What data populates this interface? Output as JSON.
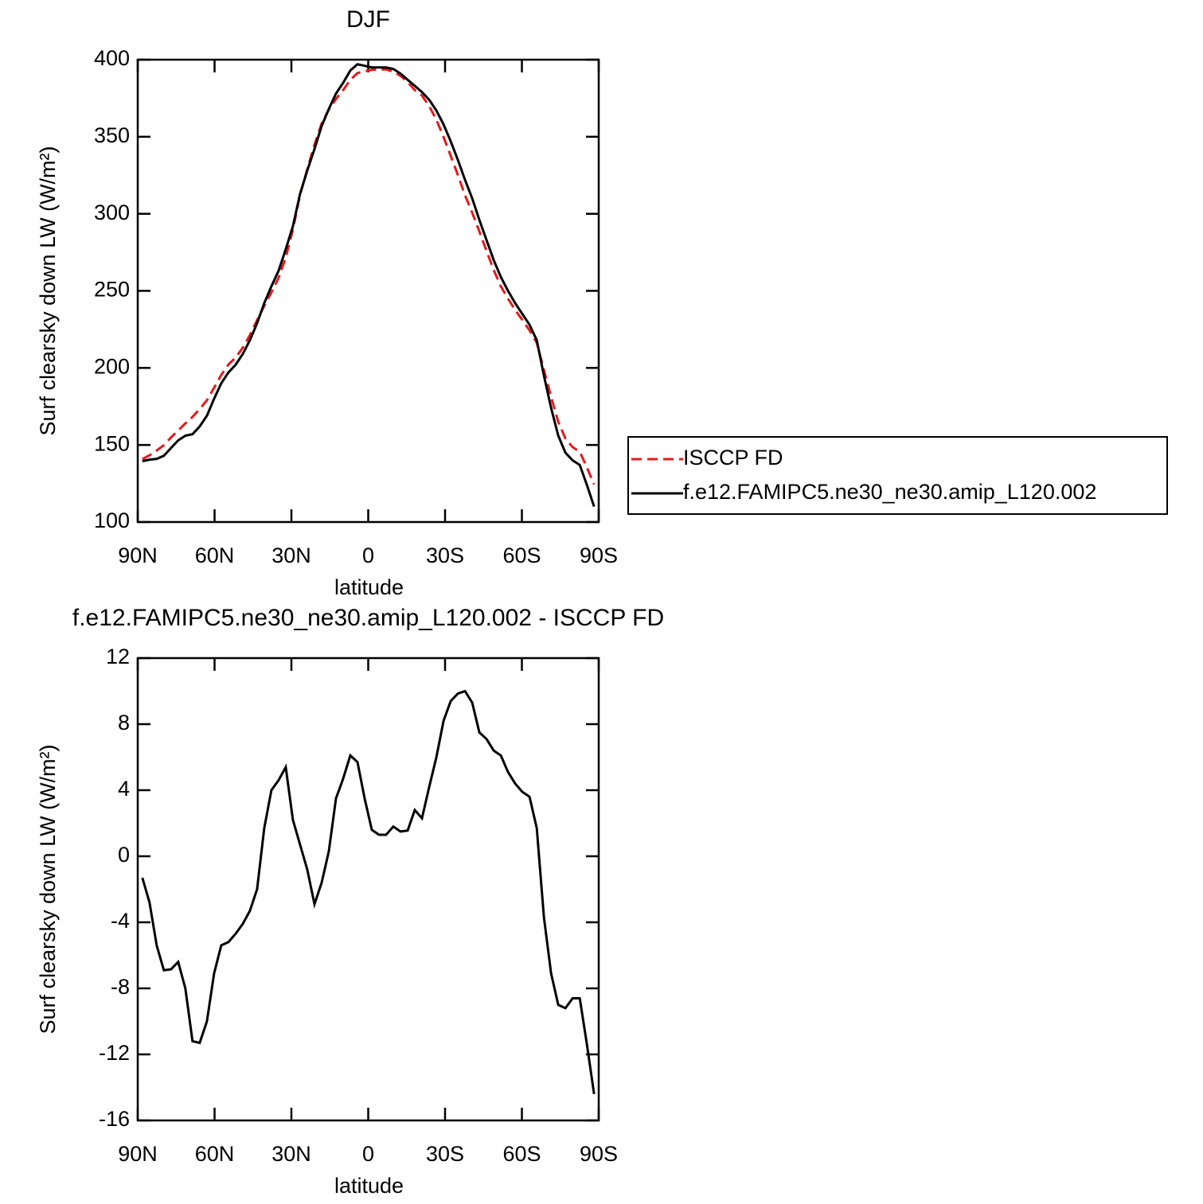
{
  "chart_data": [
    {
      "type": "line",
      "title": "DJF",
      "xlabel": "latitude",
      "ylabel": "Surf clearsky down LW (W/m²)",
      "x": [
        88.2,
        85.4,
        82.6,
        79.8,
        77.0,
        74.2,
        71.4,
        68.6,
        65.8,
        63.0,
        60.2,
        57.4,
        54.6,
        51.8,
        49.0,
        46.2,
        43.4,
        40.6,
        37.8,
        35.0,
        32.2,
        29.4,
        26.6,
        23.8,
        21.0,
        18.2,
        15.4,
        12.6,
        9.8,
        7.0,
        4.2,
        1.4,
        -1.4,
        -4.2,
        -7.0,
        -9.8,
        -12.6,
        -15.4,
        -18.2,
        -21.0,
        -23.8,
        -26.6,
        -29.4,
        -32.2,
        -35.0,
        -37.8,
        -40.6,
        -43.4,
        -46.2,
        -49.0,
        -51.8,
        -54.6,
        -57.4,
        -60.2,
        -63.0,
        -65.8,
        -68.6,
        -71.4,
        -74.2,
        -77.0,
        -79.8,
        -82.6,
        -85.4,
        -88.2
      ],
      "series": [
        {
          "name": "ISCCP FD",
          "color": "#e41a1c",
          "linestyle": "dashed",
          "values": [
            140.8,
            143.3,
            146.4,
            149.9,
            154.9,
            159.4,
            164,
            168.2,
            173.3,
            179,
            187.1,
            195.4,
            202.2,
            206.7,
            213.1,
            221.3,
            231,
            240.3,
            249,
            258.4,
            271.6,
            289.8,
            312.3,
            328.8,
            344.9,
            358.6,
            367.7,
            374.5,
            380.3,
            386.9,
            391.3,
            392.5,
            393.4,
            393.7,
            393.7,
            392.2,
            389.5,
            385.5,
            380.2,
            376.7,
            369.8,
            361,
            349.8,
            337.6,
            325.2,
            312,
            300.7,
            288.5,
            275.9,
            263.6,
            252.9,
            244.9,
            237.6,
            231.1,
            224.4,
            216.3,
            198.7,
            181.1,
            165,
            154.2,
            148.6,
            145.6,
            135.4,
            124.4
          ]
        },
        {
          "name": "f.e12.FAMIPC5.ne30_ne30.amip_L120.002",
          "color": "#000000",
          "linestyle": "solid",
          "values": [
            139.5,
            140.5,
            141,
            143,
            148,
            153,
            156,
            157,
            162,
            169,
            180,
            190,
            197,
            202,
            209,
            218,
            229,
            242,
            253,
            263,
            277,
            292,
            313,
            328,
            342,
            357,
            368,
            378,
            385,
            393,
            397,
            396,
            395,
            395,
            395,
            394,
            391,
            387,
            383,
            379,
            374,
            367,
            358,
            347,
            335,
            322,
            310,
            296,
            283,
            270,
            259,
            250,
            242,
            235,
            228,
            218,
            195,
            174,
            156,
            145,
            140,
            137,
            124,
            110
          ]
        }
      ],
      "xlim": [
        90,
        -90
      ],
      "xticks": [
        {
          "value": 90,
          "label": "90N"
        },
        {
          "value": 60,
          "label": "60N"
        },
        {
          "value": 30,
          "label": "30N"
        },
        0,
        {
          "value": -30,
          "label": "30S"
        },
        {
          "value": -60,
          "label": "60S"
        },
        {
          "value": -90,
          "label": "90S"
        }
      ],
      "ylim": [
        100,
        400
      ],
      "yticks": [
        100,
        150,
        200,
        250,
        300,
        350,
        400
      ],
      "legend": "right"
    },
    {
      "type": "line",
      "title": "f.e12.FAMIPC5.ne30_ne30.amip_L120.002 - ISCCP FD",
      "xlabel": "latitude",
      "ylabel": "Surf clearsky down LW (W/m²)",
      "x": [
        88.2,
        85.4,
        82.6,
        79.8,
        77.0,
        74.2,
        71.4,
        68.6,
        65.8,
        63.0,
        60.2,
        57.4,
        54.6,
        51.8,
        49.0,
        46.2,
        43.4,
        40.6,
        37.8,
        35.0,
        32.2,
        29.4,
        26.6,
        23.8,
        21.0,
        18.2,
        15.4,
        12.6,
        9.8,
        7.0,
        4.2,
        1.4,
        -1.4,
        -4.2,
        -7.0,
        -9.8,
        -12.6,
        -15.4,
        -18.2,
        -21.0,
        -23.8,
        -26.6,
        -29.4,
        -32.2,
        -35.0,
        -37.8,
        -40.6,
        -43.4,
        -46.2,
        -49.0,
        -51.8,
        -54.6,
        -57.4,
        -60.2,
        -63.0,
        -65.8,
        -68.6,
        -71.4,
        -74.2,
        -77.0,
        -79.8,
        -82.6,
        -85.4,
        -88.2
      ],
      "values": [
        -1.3,
        -2.8,
        -5.4,
        -6.9,
        -6.85,
        -6.4,
        -8,
        -11.2,
        -11.3,
        -10,
        -7.1,
        -5.4,
        -5.2,
        -4.7,
        -4.1,
        -3.3,
        -2,
        1.7,
        4,
        4.6,
        5.4,
        2.2,
        0.7,
        -0.8,
        -2.9,
        -1.6,
        0.3,
        3.5,
        4.7,
        6.1,
        5.7,
        3.5,
        1.6,
        1.3,
        1.3,
        1.8,
        1.5,
        1.55,
        2.8,
        2.3,
        4.2,
        6,
        8.2,
        9.4,
        9.85,
        10,
        9.3,
        7.5,
        7.1,
        6.4,
        6.1,
        5.1,
        4.4,
        3.9,
        3.6,
        1.7,
        -3.7,
        -7.1,
        -9,
        -9.2,
        -8.6,
        -8.6,
        -11.4,
        -14.4
      ],
      "color": "#000000",
      "xlim": [
        90,
        -90
      ],
      "xticks": [
        {
          "value": 90,
          "label": "90N"
        },
        {
          "value": 60,
          "label": "60N"
        },
        {
          "value": 30,
          "label": "30N"
        },
        0,
        {
          "value": -30,
          "label": "30S"
        },
        {
          "value": -60,
          "label": "60S"
        },
        {
          "value": -90,
          "label": "90S"
        }
      ],
      "ylim": [
        -16,
        12
      ],
      "yticks": [
        -16,
        -12,
        -8,
        -4,
        0,
        4,
        8,
        12
      ]
    }
  ]
}
